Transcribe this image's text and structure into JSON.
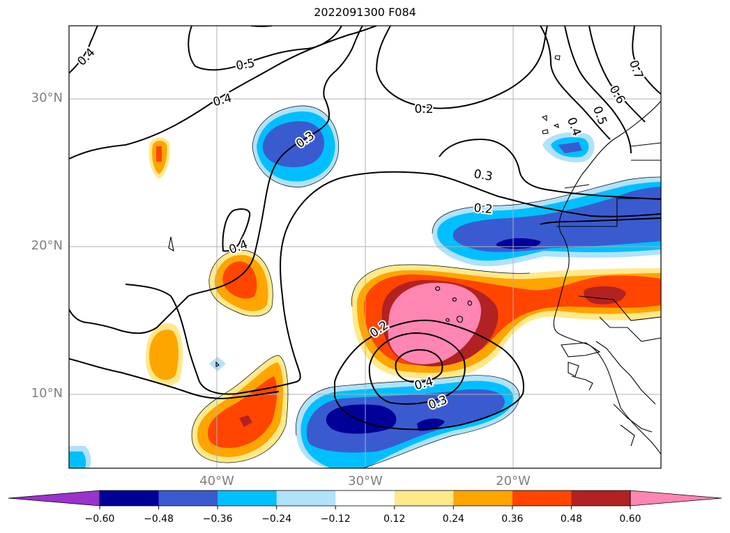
{
  "title": "2022091300 F084",
  "map": {
    "lat_ticks": [
      "30°N",
      "20°N",
      "10°N"
    ],
    "lon_ticks": [
      "40°W",
      "30°W",
      "20°W"
    ],
    "grid": true,
    "contour_labels": [
      "0.4",
      "0.5",
      "0.4",
      "0.3",
      "0.2",
      "0.3",
      "0.2",
      "0.4",
      "0.2",
      "0.4",
      "0.3",
      "0.4",
      "0.5",
      "0.6",
      "0.7"
    ]
  },
  "colorbar": {
    "orientation": "horizontal",
    "extend": "both",
    "colors": [
      "#9933cc",
      "#000099",
      "#3a5bd0",
      "#00bfff",
      "#b0e2fa",
      "#ffffff",
      "#ffe98a",
      "#ffa500",
      "#ff4500",
      "#b22222",
      "#ff85b3"
    ],
    "tick_labels": [
      "−0.60",
      "−0.48",
      "−0.36",
      "−0.24",
      "−0.12",
      "0.12",
      "0.24",
      "0.36",
      "0.48",
      "0.60"
    ]
  }
}
